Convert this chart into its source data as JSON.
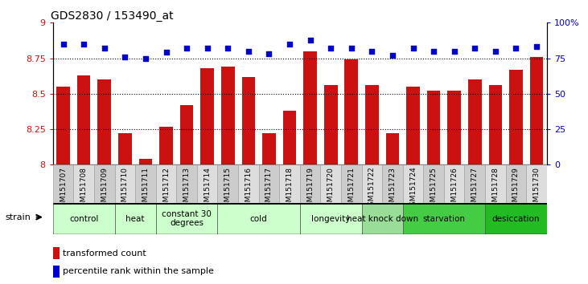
{
  "title": "GDS2830 / 153490_at",
  "samples": [
    "GSM151707",
    "GSM151708",
    "GSM151709",
    "GSM151710",
    "GSM151711",
    "GSM151712",
    "GSM151713",
    "GSM151714",
    "GSM151715",
    "GSM151716",
    "GSM151717",
    "GSM151718",
    "GSM151719",
    "GSM151720",
    "GSM151721",
    "GSM151722",
    "GSM151723",
    "GSM151724",
    "GSM151725",
    "GSM151726",
    "GSM151727",
    "GSM151728",
    "GSM151729",
    "GSM151730"
  ],
  "bar_values": [
    8.55,
    8.63,
    8.6,
    8.22,
    8.04,
    8.27,
    8.42,
    8.68,
    8.69,
    8.62,
    8.22,
    8.38,
    8.8,
    8.56,
    8.74,
    8.56,
    8.22,
    8.55,
    8.52,
    8.52,
    8.6,
    8.56,
    8.67,
    8.76
  ],
  "dot_values": [
    85,
    85,
    82,
    76,
    75,
    79,
    82,
    82,
    82,
    80,
    78,
    85,
    88,
    82,
    82,
    80,
    77,
    82,
    80,
    80,
    82,
    80,
    82,
    83
  ],
  "ylim_left": [
    8.0,
    9.0
  ],
  "ylim_right": [
    0,
    100
  ],
  "yticks_left": [
    8.0,
    8.25,
    8.5,
    8.75,
    9.0
  ],
  "yticks_right": [
    0,
    25,
    50,
    75,
    100
  ],
  "ytick_labels_left": [
    "8",
    "8.25",
    "8.5",
    "8.75",
    "9"
  ],
  "ytick_labels_right": [
    "0",
    "25",
    "50",
    "75",
    "100%"
  ],
  "hlines": [
    8.25,
    8.5,
    8.75
  ],
  "bar_color": "#cc1111",
  "dot_color": "#0000cc",
  "groups": [
    {
      "label": "control",
      "start": 0,
      "end": 2,
      "color": "#ccffcc"
    },
    {
      "label": "heat",
      "start": 3,
      "end": 4,
      "color": "#ccffcc"
    },
    {
      "label": "constant 30\ndegrees",
      "start": 5,
      "end": 7,
      "color": "#ccffcc"
    },
    {
      "label": "cold",
      "start": 8,
      "end": 11,
      "color": "#ccffcc"
    },
    {
      "label": "longevity",
      "start": 12,
      "end": 14,
      "color": "#ccffcc"
    },
    {
      "label": "heat knock down",
      "start": 15,
      "end": 16,
      "color": "#99dd99"
    },
    {
      "label": "starvation",
      "start": 17,
      "end": 20,
      "color": "#44cc44"
    },
    {
      "label": "desiccation",
      "start": 21,
      "end": 23,
      "color": "#22bb22"
    }
  ],
  "strain_label": "strain",
  "legend_bar_label": "transformed count",
  "legend_dot_label": "percentile rank within the sample",
  "title_fontsize": 10,
  "axis_label_color_left": "#cc1111",
  "axis_label_color_right": "#0000cc",
  "tick_bg_color": "#cccccc",
  "tick_bg_color_alt": "#dddddd"
}
